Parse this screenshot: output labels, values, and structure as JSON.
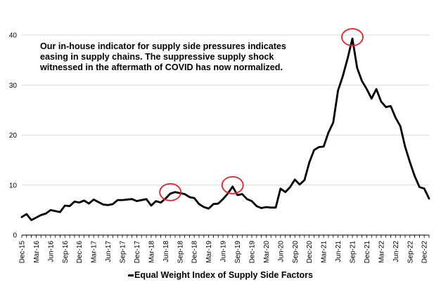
{
  "chart_data": {
    "type": "line",
    "title": "",
    "xlabel": "",
    "ylabel": "",
    "ylim": [
      0,
      40
    ],
    "yticks": [
      0,
      10,
      20,
      30,
      40
    ],
    "grid": "horizontal",
    "legend_position": "bottom",
    "annotation": "Our in-house indicator for supply side pressures indicates easing in supply chains. The suppressive supply shock witnessed in the aftermath of COVID has now normalized.",
    "x_tick_labels": [
      "Dec-15",
      "Mar-16",
      "Jun-16",
      "Sep-16",
      "Dec-16",
      "Mar-17",
      "Jun-17",
      "Sep-17",
      "Dec-17",
      "Mar-18",
      "Jun-18",
      "Sep-18",
      "Dec-18",
      "Mar-19",
      "Jun-19",
      "Sep-19",
      "Dec-19",
      "Mar-20",
      "Jun-20",
      "Sep-20",
      "Dec-20",
      "Mar-21",
      "Jun-21",
      "Sep-21",
      "Dec-21",
      "Mar-22",
      "Jun-22",
      "Sep-22",
      "Dec-22"
    ],
    "series": [
      {
        "name": "Equal Weight Index of Supply Side Factors",
        "color": "#000000",
        "values": [
          3.6,
          4.2,
          3.0,
          3.5,
          4.0,
          4.3,
          5.0,
          4.8,
          4.6,
          5.9,
          5.8,
          6.7,
          6.5,
          6.9,
          6.3,
          7.1,
          6.6,
          6.1,
          6.0,
          6.2,
          7.0,
          7.0,
          7.1,
          7.2,
          6.8,
          7.0,
          7.2,
          5.9,
          6.8,
          6.5,
          7.3,
          8.3,
          8.6,
          8.4,
          8.2,
          7.6,
          7.4,
          6.2,
          5.6,
          5.3,
          6.2,
          6.3,
          7.2,
          8.3,
          9.7,
          8.0,
          8.2,
          7.2,
          6.8,
          5.8,
          5.4,
          5.6,
          5.5,
          5.5,
          9.3,
          8.6,
          9.6,
          11.1,
          10.1,
          11.0,
          14.5,
          17.0,
          17.6,
          17.7,
          20.5,
          22.5,
          28.9,
          31.8,
          35.3,
          39.3,
          33.4,
          30.8,
          29.2,
          27.3,
          29.2,
          26.7,
          25.6,
          25.8,
          23.5,
          21.8,
          17.7,
          14.6,
          11.8,
          9.6,
          9.3,
          7.3
        ]
      }
    ],
    "highlights": [
      {
        "label": "Jun-18",
        "index": 31
      },
      {
        "label": "Sep-19",
        "index": 44
      },
      {
        "label": "Sep-21",
        "index": 69
      }
    ],
    "highlight_color": "#e8202a"
  }
}
